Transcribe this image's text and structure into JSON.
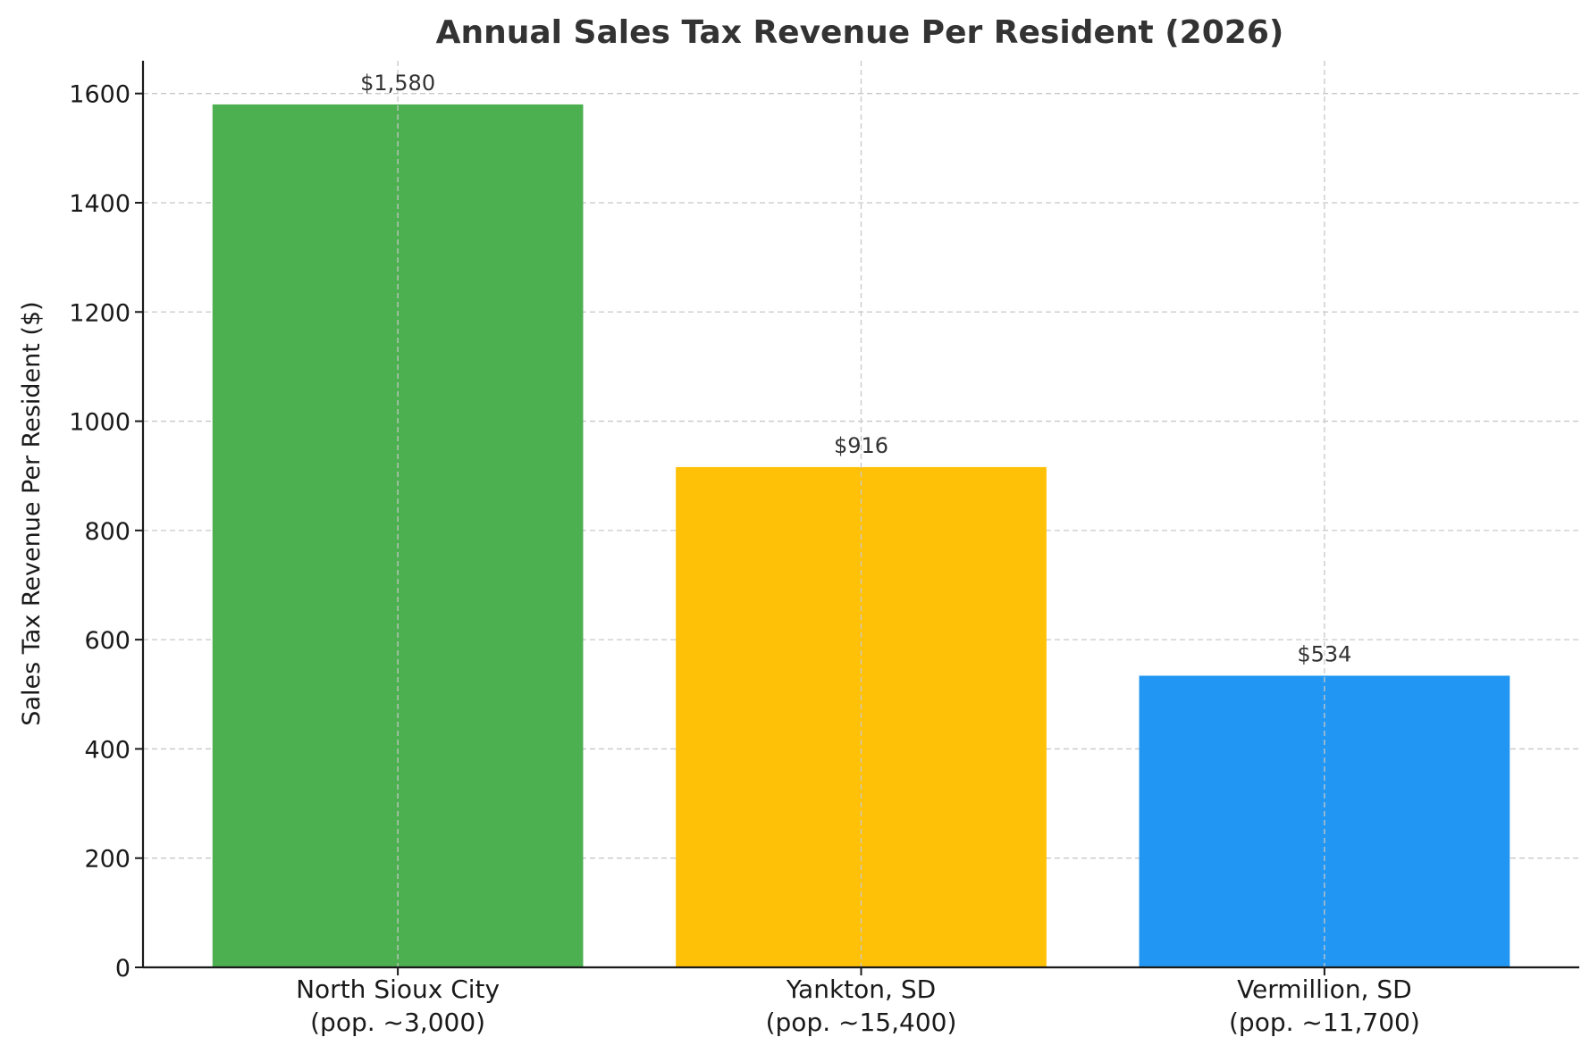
{
  "chart_data": {
    "type": "bar",
    "title": "Annual Sales Tax Revenue Per Resident (2026)",
    "xlabel": "",
    "ylabel": "Sales Tax Revenue Per Resident ($)",
    "ylim": [
      0,
      1660
    ],
    "yticks": [
      0,
      200,
      400,
      600,
      800,
      1000,
      1200,
      1400,
      1600
    ],
    "grid": true,
    "categories": [
      {
        "name": "North Sioux City",
        "sub": "(pop. ~3,000)"
      },
      {
        "name": "Yankton, SD",
        "sub": "(pop. ~15,400)"
      },
      {
        "name": "Vermillion, SD",
        "sub": "(pop. ~11,700)"
      }
    ],
    "values": [
      1580,
      916,
      534
    ],
    "data_labels": [
      "$1,580",
      "$916",
      "$534"
    ],
    "colors": [
      "#4caf50",
      "#ffc107",
      "#2196f3"
    ]
  }
}
